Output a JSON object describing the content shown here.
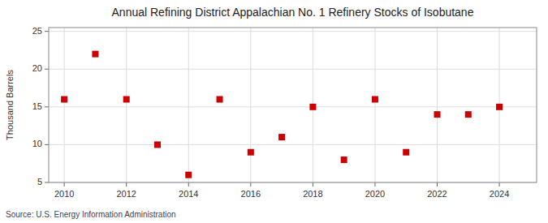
{
  "chart_data": {
    "type": "scatter",
    "title": "Annual Refining District Appalachian No. 1 Refinery Stocks of Isobutane",
    "ylabel": "Thousand Barrels",
    "source": "Source: U.S. Energy Information Administration",
    "x": [
      2010,
      2011,
      2012,
      2013,
      2014,
      2015,
      2016,
      2017,
      2018,
      2019,
      2020,
      2021,
      2022,
      2023,
      2024
    ],
    "values": [
      16,
      22,
      16,
      10,
      6,
      16,
      9,
      11,
      15,
      8,
      16,
      9,
      14,
      14,
      15
    ],
    "xlim": [
      2009.5,
      2025.2
    ],
    "ylim": [
      5,
      25.5
    ],
    "xticks": [
      2010,
      2012,
      2014,
      2016,
      2018,
      2020,
      2022,
      2024
    ],
    "yticks": [
      5,
      10,
      15,
      20,
      25
    ],
    "color": "#cc0000",
    "marker": "square",
    "grid": true
  }
}
